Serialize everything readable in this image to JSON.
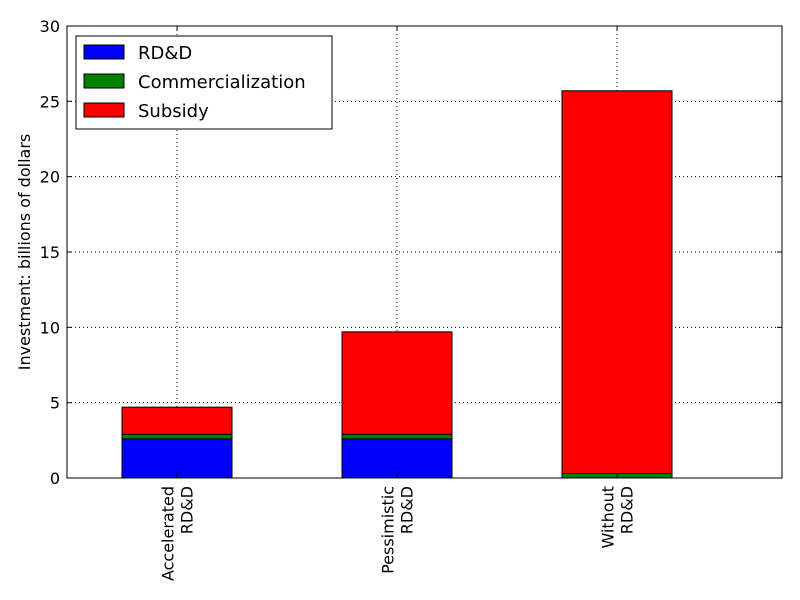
{
  "chart_data": {
    "type": "bar",
    "stacked": true,
    "categories": [
      [
        "Accelerated",
        "RD&D"
      ],
      [
        "Pessimistic",
        "RD&D"
      ],
      [
        "Without",
        "RD&D"
      ]
    ],
    "series": [
      {
        "name": "RD&D",
        "color": "#0000ff",
        "values": [
          2.6,
          2.6,
          0.0
        ]
      },
      {
        "name": "Commercialization",
        "color": "#008000",
        "values": [
          0.3,
          0.3,
          0.3
        ]
      },
      {
        "name": "Subsidy",
        "color": "#ff0000",
        "values": [
          1.8,
          6.8,
          25.4
        ]
      }
    ],
    "ylabel": "Investment: billions of dollars",
    "ylim": [
      0,
      30
    ],
    "yticks": [
      0,
      5,
      10,
      15,
      20,
      25,
      30
    ],
    "grid": true,
    "legend_position": "top-left"
  }
}
